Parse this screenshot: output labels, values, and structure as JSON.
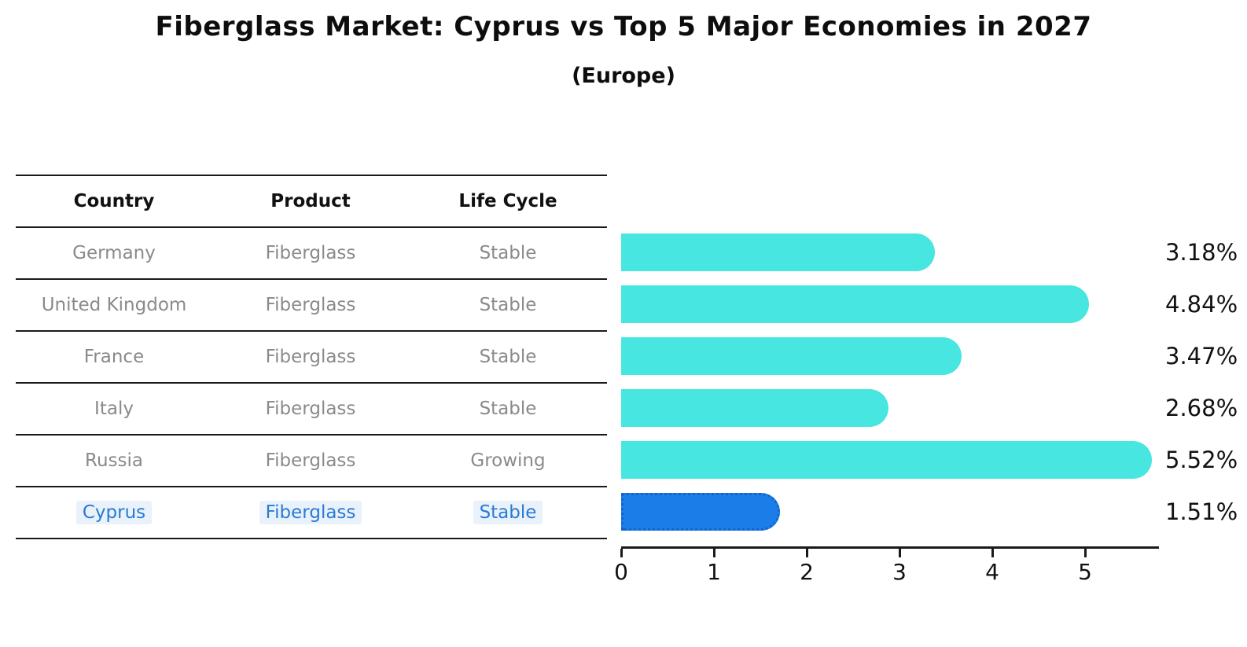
{
  "title": "Fiberglass Market: Cyprus vs Top 5 Major Economies in 2027",
  "subtitle": "(Europe)",
  "table": {
    "headers": [
      "Country",
      "Product",
      "Life Cycle"
    ],
    "rows": [
      {
        "country": "Germany",
        "product": "Fiberglass",
        "life_cycle": "Stable",
        "highlighted": false
      },
      {
        "country": "United Kingdom",
        "product": "Fiberglass",
        "life_cycle": "Stable",
        "highlighted": false
      },
      {
        "country": "France",
        "product": "Fiberglass",
        "life_cycle": "Stable",
        "highlighted": false
      },
      {
        "country": "Italy",
        "product": "Fiberglass",
        "life_cycle": "Stable",
        "highlighted": false
      },
      {
        "country": "Russia",
        "product": "Fiberglass",
        "life_cycle": "Growing",
        "highlighted": false
      },
      {
        "country": "Cyprus",
        "product": "Fiberglass",
        "life_cycle": "Stable",
        "highlighted": true
      }
    ]
  },
  "chart_data": {
    "type": "bar",
    "orientation": "horizontal",
    "title": "Fiberglass Market: Cyprus vs Top 5 Major Economies in 2027",
    "subtitle": "(Europe)",
    "categories": [
      "Germany",
      "United Kingdom",
      "France",
      "Italy",
      "Russia",
      "Cyprus"
    ],
    "values": [
      3.18,
      4.84,
      3.47,
      2.68,
      5.52,
      1.51
    ],
    "value_labels": [
      "3.18%",
      "4.84%",
      "3.47%",
      "2.68%",
      "5.52%",
      "1.51%"
    ],
    "value_suffix": "%",
    "xlim": [
      0,
      5.8
    ],
    "x_ticks": [
      "0",
      "1",
      "2",
      "3",
      "4",
      "5"
    ],
    "grid": false,
    "legend": false,
    "bar_color": "#47e6e0",
    "highlight_color": "#1b7ee8",
    "highlight_index": 5,
    "highlight_text_color": "#2a7ad3",
    "axis_color": "#1a1a1a",
    "row_text_color": "#8a8a8a"
  }
}
